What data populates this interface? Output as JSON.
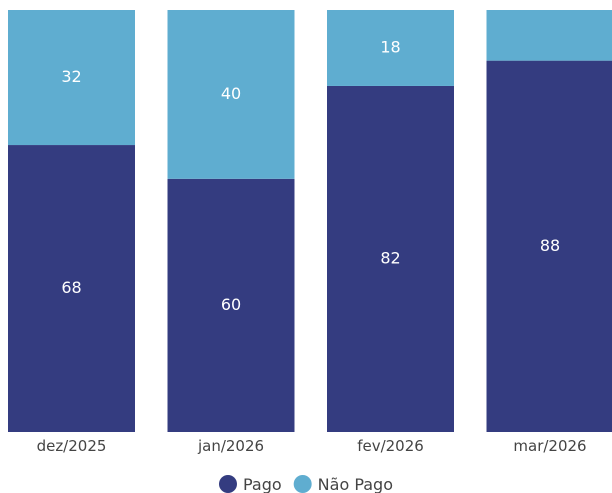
{
  "chart_data": {
    "type": "bar",
    "stacked": true,
    "orientation": "vertical",
    "categories": [
      "dez/2025",
      "jan/2026",
      "fev/2026",
      "mar/2026"
    ],
    "series": [
      {
        "name": "Pago",
        "color": "#343c80",
        "values": [
          68,
          60,
          82,
          88
        ],
        "labels": [
          "68",
          "60",
          "82",
          "88"
        ]
      },
      {
        "name": "Não Pago",
        "color": "#5fadd0",
        "values": [
          32,
          40,
          18,
          12
        ],
        "labels": [
          "32",
          "40",
          "18",
          ""
        ]
      }
    ],
    "ylim": [
      0,
      100
    ],
    "grid": false,
    "legend_position": "bottom-center"
  }
}
